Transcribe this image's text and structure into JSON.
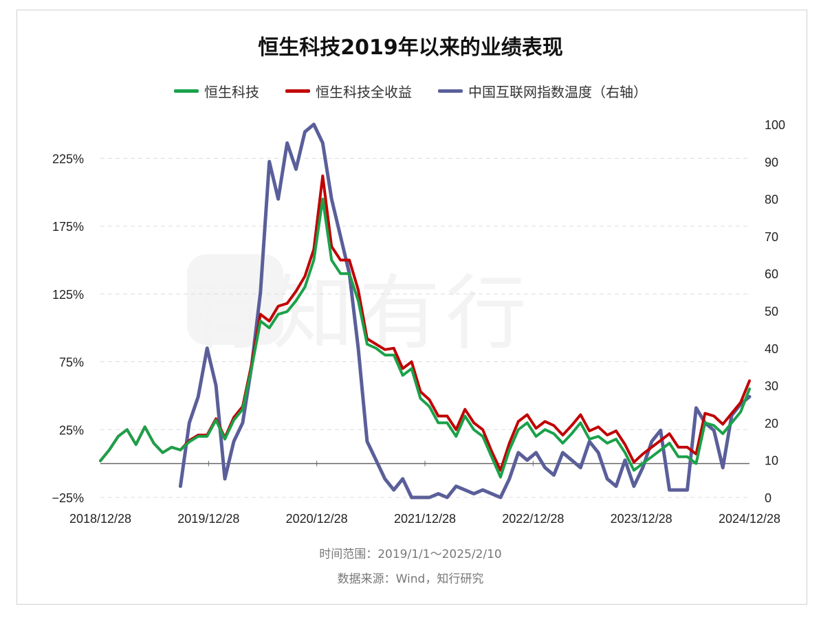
{
  "title": "恒生科技2019年以来的业绩表现",
  "legend": [
    {
      "label": "恒生科技",
      "color": "#1aa14a"
    },
    {
      "label": "恒生科技全收益",
      "color": "#c00000"
    },
    {
      "label": "中国互联网指数温度（右轴）",
      "color": "#5a5f9a"
    }
  ],
  "footer": {
    "range": "时间范围：2019/1/1～2025/2/10",
    "source": "数据来源：Wind，知行研究"
  },
  "watermark": "有知有行",
  "chart_data": {
    "type": "line",
    "x_tick_labels": [
      "2018/12/28",
      "2019/12/28",
      "2020/12/28",
      "2021/12/28",
      "2022/12/28",
      "2023/12/28",
      "2024/12/28"
    ],
    "y_left": {
      "ticks": [
        "225%",
        "175%",
        "125%",
        "75%",
        "25%",
        "−25%"
      ],
      "ylim": [
        -25,
        250
      ]
    },
    "y_right": {
      "ticks": [
        "100",
        "90",
        "80",
        "70",
        "60",
        "50",
        "40",
        "30",
        "20",
        "10",
        "0"
      ],
      "ylim": [
        0,
        100
      ]
    },
    "grid": true,
    "legend_position": "top-center",
    "x": [
      "2019-01",
      "2019-02",
      "2019-03",
      "2019-04",
      "2019-05",
      "2019-06",
      "2019-07",
      "2019-08",
      "2019-09",
      "2019-10",
      "2019-11",
      "2019-12",
      "2020-01",
      "2020-02",
      "2020-03",
      "2020-04",
      "2020-05",
      "2020-06",
      "2020-07",
      "2020-08",
      "2020-09",
      "2020-10",
      "2020-11",
      "2020-12",
      "2021-01",
      "2021-02",
      "2021-03",
      "2021-04",
      "2021-05",
      "2021-06",
      "2021-07",
      "2021-08",
      "2021-09",
      "2021-10",
      "2021-11",
      "2021-12",
      "2022-01",
      "2022-02",
      "2022-03",
      "2022-04",
      "2022-05",
      "2022-06",
      "2022-07",
      "2022-08",
      "2022-09",
      "2022-10",
      "2022-11",
      "2022-12",
      "2023-01",
      "2023-02",
      "2023-03",
      "2023-04",
      "2023-05",
      "2023-06",
      "2023-07",
      "2023-08",
      "2023-09",
      "2023-10",
      "2023-11",
      "2023-12",
      "2024-01",
      "2024-02",
      "2024-03",
      "2024-04",
      "2024-05",
      "2024-06",
      "2024-07",
      "2024-08",
      "2024-09",
      "2024-10",
      "2024-11",
      "2024-12",
      "2025-01",
      "2025-02"
    ],
    "series": [
      {
        "name": "恒生科技",
        "axis": "left",
        "color": "#1aa14a",
        "values": [
          2,
          10,
          20,
          25,
          14,
          27,
          15,
          8,
          12,
          10,
          16,
          20,
          20,
          32,
          18,
          32,
          40,
          70,
          105,
          100,
          110,
          112,
          120,
          130,
          150,
          195,
          150,
          140,
          140,
          120,
          88,
          85,
          80,
          80,
          65,
          70,
          48,
          42,
          30,
          30,
          20,
          35,
          25,
          20,
          5,
          -10,
          10,
          25,
          30,
          20,
          25,
          22,
          15,
          22,
          30,
          18,
          20,
          15,
          18,
          8,
          -5,
          0,
          5,
          10,
          15,
          5,
          5,
          0,
          30,
          28,
          22,
          30,
          38,
          55
        ]
      },
      {
        "name": "恒生科技全收益",
        "axis": "left",
        "color": "#c00000",
        "values": [
          2,
          10,
          20,
          25,
          14,
          27,
          15,
          8,
          12,
          10,
          17,
          21,
          21,
          33,
          19,
          34,
          42,
          73,
          110,
          105,
          116,
          118,
          127,
          138,
          158,
          212,
          160,
          150,
          150,
          128,
          92,
          88,
          84,
          85,
          70,
          75,
          53,
          47,
          35,
          35,
          25,
          40,
          30,
          25,
          9,
          -5,
          15,
          31,
          36,
          26,
          31,
          28,
          21,
          28,
          36,
          24,
          27,
          21,
          24,
          14,
          1,
          7,
          12,
          17,
          22,
          12,
          12,
          7,
          37,
          35,
          29,
          37,
          45,
          61
        ]
      },
      {
        "name": "中国互联网指数温度（右轴）",
        "axis": "right",
        "color": "#5a5f9a",
        "values": [
          null,
          null,
          null,
          null,
          null,
          null,
          null,
          null,
          null,
          3,
          20,
          27,
          40,
          30,
          5,
          15,
          20,
          35,
          55,
          90,
          80,
          95,
          88,
          98,
          100,
          95,
          80,
          70,
          60,
          40,
          15,
          10,
          5,
          2,
          5,
          0,
          0,
          0,
          1,
          0,
          3,
          2,
          1,
          2,
          1,
          0,
          5,
          12,
          10,
          12,
          8,
          6,
          12,
          10,
          8,
          15,
          12,
          5,
          3,
          10,
          3,
          8,
          15,
          18,
          2,
          2,
          2,
          24,
          20,
          18,
          8,
          22,
          25,
          27
        ]
      }
    ]
  }
}
